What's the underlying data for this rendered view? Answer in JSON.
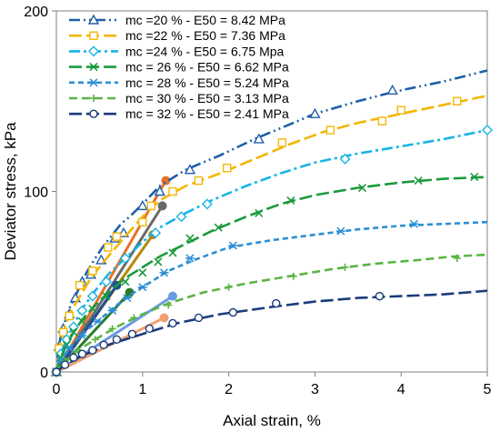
{
  "chart_data": {
    "type": "line",
    "xlabel": "Axial strain, %",
    "ylabel": "Deviator stress, kPa",
    "xlim": [
      0,
      5
    ],
    "ylim": [
      0,
      200
    ],
    "xticks": [
      0,
      1,
      2,
      3,
      4,
      5
    ],
    "yticks": [
      0,
      100,
      200
    ],
    "ytick_labels": [
      "0",
      "100",
      "200"
    ],
    "grid": false,
    "legend_position": "top-left",
    "series": [
      {
        "name": "mc =20 % - E50 = 8.42 MPa",
        "color": "#1f5fa8",
        "dash": "dash-dot-dot",
        "marker": "triangle",
        "x": [
          0,
          0.03,
          0.08,
          0.15,
          0.25,
          0.35,
          0.45,
          0.55,
          0.65,
          0.75,
          0.85,
          1.0,
          1.2,
          1.5,
          1.9,
          2.3,
          2.7,
          3.0,
          3.5,
          3.9,
          4.5,
          5.0
        ],
        "y": [
          0,
          15,
          25,
          35,
          45,
          55,
          63,
          70,
          76,
          82,
          86,
          93,
          103,
          112,
          120,
          129,
          137,
          143,
          150,
          155,
          161,
          167
        ],
        "marker_x": [
          0,
          0.03,
          0.08,
          0.15,
          0.22,
          0.3,
          0.4,
          0.52,
          0.68,
          0.78,
          1.0,
          1.2,
          1.55,
          2.35,
          3.0,
          3.9
        ],
        "marker_y": [
          0,
          14,
          24,
          32,
          41,
          50,
          54,
          62,
          74,
          77,
          92,
          100,
          112,
          129,
          143,
          156
        ]
      },
      {
        "name": "mc =22 % - E50 = 7.36 MPa",
        "color": "#f2b705",
        "dash": "long-dash",
        "marker": "square",
        "x": [
          0,
          0.03,
          0.08,
          0.15,
          0.25,
          0.4,
          0.6,
          0.8,
          1.0,
          1.2,
          1.5,
          1.9,
          2.3,
          2.7,
          3.1,
          3.5,
          4.0,
          4.5,
          5.0
        ],
        "y": [
          0,
          13,
          22,
          32,
          40,
          52,
          64,
          75,
          86,
          95,
          103,
          110,
          118,
          126,
          133,
          138,
          143,
          148,
          153
        ],
        "marker_x": [
          0,
          0.03,
          0.08,
          0.15,
          0.27,
          0.42,
          0.6,
          0.7,
          1.0,
          1.1,
          1.35,
          1.65,
          1.98,
          2.62,
          3.18,
          3.78,
          4.0,
          4.65
        ],
        "marker_y": [
          0,
          13,
          22,
          31,
          48,
          56,
          69,
          75,
          83,
          92,
          100,
          106,
          113,
          127,
          134,
          139,
          145,
          150
        ]
      },
      {
        "name": "mc =24 % - E50 = 6.75 Mpa",
        "color": "#18b4e6",
        "dash": "dash-dot",
        "marker": "diamond",
        "x": [
          0,
          0.05,
          0.12,
          0.2,
          0.3,
          0.45,
          0.6,
          0.8,
          1.0,
          1.2,
          1.5,
          1.8,
          2.2,
          2.6,
          3.0,
          3.5,
          4.0,
          4.5,
          5.0
        ],
        "y": [
          0,
          10,
          18,
          26,
          35,
          45,
          54,
          63,
          72,
          80,
          88,
          95,
          103,
          110,
          116,
          121,
          125,
          129,
          134
        ],
        "marker_x": [
          0,
          0.05,
          0.12,
          0.2,
          0.3,
          0.42,
          0.58,
          0.8,
          1.15,
          1.45,
          1.75,
          3.35,
          5.0
        ],
        "marker_y": [
          0,
          10,
          18,
          25,
          34,
          42,
          50,
          63,
          77,
          86,
          93,
          118,
          134
        ]
      },
      {
        "name": "mc = 26 % - E50 = 6.62 MPa",
        "color": "#1a9a3c",
        "dash": "long-dash",
        "marker": "x",
        "x": [
          0,
          0.05,
          0.12,
          0.2,
          0.3,
          0.45,
          0.6,
          0.8,
          1.0,
          1.2,
          1.5,
          1.8,
          2.2,
          2.6,
          3.0,
          3.5,
          4.0,
          4.5,
          5.0
        ],
        "y": [
          0,
          8,
          15,
          22,
          29,
          37,
          44,
          52,
          58,
          64,
          71,
          78,
          86,
          93,
          98,
          102,
          105,
          107,
          108
        ],
        "marker_x": [
          0,
          0.05,
          0.12,
          0.2,
          0.3,
          0.42,
          0.58,
          0.8,
          1.0,
          1.18,
          1.35,
          1.55,
          1.88,
          2.35,
          2.72,
          3.55,
          4.2,
          4.85
        ],
        "marker_y": [
          0,
          8,
          15,
          22,
          28,
          35,
          42,
          50,
          55,
          61,
          66,
          74,
          80,
          88,
          95,
          102,
          106,
          108
        ]
      },
      {
        "name": "mc = 28 % - E50 = 5.24 MPa",
        "color": "#2b8fd6",
        "dash": "short-dash",
        "marker": "asterisk",
        "x": [
          0,
          0.05,
          0.15,
          0.3,
          0.5,
          0.7,
          0.9,
          1.1,
          1.3,
          1.6,
          2.0,
          2.5,
          3.0,
          3.5,
          4.0,
          4.5,
          5.0
        ],
        "y": [
          0,
          6,
          13,
          21,
          29,
          37,
          44,
          50,
          56,
          62,
          69,
          73,
          76,
          79,
          81,
          82,
          83
        ],
        "marker_x": [
          0,
          0.05,
          0.15,
          0.3,
          0.48,
          0.65,
          0.82,
          1.0,
          1.25,
          1.55,
          2.05,
          3.3,
          4.15
        ],
        "marker_y": [
          0,
          6,
          13,
          20,
          28,
          34,
          41,
          47,
          55,
          63,
          70,
          78,
          82
        ]
      },
      {
        "name": "mc = 30 % - E50 = 3.13 MPa",
        "color": "#5ab443",
        "dash": "dash",
        "marker": "plus",
        "x": [
          0,
          0.1,
          0.25,
          0.45,
          0.7,
          1.0,
          1.3,
          1.7,
          2.2,
          2.7,
          3.2,
          3.7,
          4.2,
          4.6,
          5.0
        ],
        "y": [
          0,
          6,
          12,
          18,
          25,
          32,
          38,
          44,
          49,
          53,
          57,
          60,
          62,
          64,
          65
        ],
        "marker_x": [
          0,
          0.1,
          0.25,
          0.45,
          0.65,
          0.9,
          1.3,
          2.0,
          2.75,
          3.35,
          4.65
        ],
        "marker_y": [
          0,
          6,
          12,
          18,
          24,
          30,
          37,
          47,
          53,
          58,
          63
        ]
      },
      {
        "name": "mc = 32 % - E50 = 2.41 MPa",
        "color": "#1a3c7a",
        "dash": "long-dash",
        "marker": "circle",
        "x": [
          0,
          0.1,
          0.3,
          0.6,
          1.0,
          1.4,
          1.9,
          2.5,
          3.0,
          3.5,
          4.0,
          4.5,
          5.0
        ],
        "y": [
          0,
          4,
          9,
          15,
          21,
          27,
          32,
          36,
          39,
          41,
          42,
          43,
          45
        ],
        "marker_x": [
          0,
          0.1,
          0.2,
          0.3,
          0.42,
          0.55,
          0.7,
          0.88,
          1.08,
          1.35,
          1.65,
          2.05,
          2.55,
          3.75
        ],
        "marker_y": [
          0,
          4,
          8,
          10,
          12,
          15,
          18,
          21,
          24,
          27,
          30,
          33,
          38,
          42
        ]
      }
    ],
    "e50_lines": [
      {
        "color": "#e8722a",
        "x": [
          0,
          1.27
        ],
        "y": [
          0,
          106
        ]
      },
      {
        "color": "#6a6a6a",
        "x": [
          0,
          1.23
        ],
        "y": [
          0,
          92
        ]
      },
      {
        "color": "#b8860b",
        "x": [
          0,
          1.12
        ],
        "y": [
          0,
          76
        ]
      },
      {
        "color": "#1f4e9a",
        "x": [
          0,
          0.7
        ],
        "y": [
          0,
          48
        ]
      },
      {
        "color": "#2a7a2a",
        "x": [
          0,
          0.85
        ],
        "y": [
          0,
          44
        ]
      },
      {
        "color": "#6a9ae6",
        "x": [
          0,
          1.35
        ],
        "y": [
          0,
          42
        ]
      },
      {
        "color": "#f0a070",
        "x": [
          0,
          1.25
        ],
        "y": [
          0,
          30
        ]
      }
    ]
  }
}
